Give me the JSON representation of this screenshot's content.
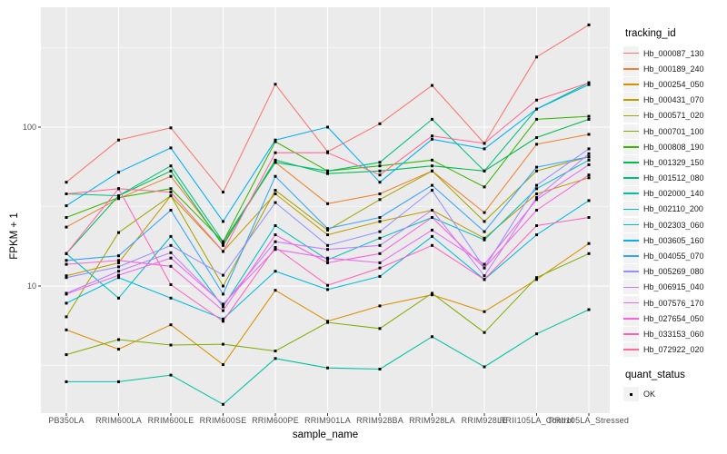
{
  "chart_data": {
    "type": "line",
    "title": "",
    "xlabel": "sample_name",
    "ylabel": "FPKM + 1",
    "y_scale": "log10",
    "y_major_ticks": [
      10,
      100
    ],
    "y_minor_gridlines": [
      3.162,
      31.62,
      316.23
    ],
    "ylim": [
      1.55,
      560
    ],
    "grid": true,
    "panel_background": "#EBEBEB",
    "gridline_color": "#FFFFFF",
    "point_marker": "black-square",
    "point_color": "#000000",
    "legend": {
      "title": "tracking_id",
      "position": "right"
    },
    "quant_legend": {
      "title": "quant_status",
      "items": [
        {
          "label": "OK",
          "marker": "black-square"
        }
      ]
    },
    "categories": [
      "PB350LA",
      "RRIM600LA",
      "RRIM600LE",
      "RRIM600SE",
      "RRIM600PE",
      "RRIM901LA",
      "RRIM928BA",
      "RRIM928LA",
      "RRIM928LE",
      "RRII105LA_Control",
      "RRII105LA_Stressed"
    ],
    "series": [
      {
        "name": "Hb_000087_130",
        "color": "#F8766D",
        "values": [
          45,
          83,
          99,
          39,
          186,
          70,
          105,
          183,
          79,
          276,
          440
        ]
      },
      {
        "name": "Hb_000189_240",
        "color": "#EA8331",
        "values": [
          23.5,
          35.5,
          49,
          18.5,
          60,
          33,
          38,
          53,
          29,
          78,
          90
        ]
      },
      {
        "name": "Hb_000254_050",
        "color": "#D89000",
        "values": [
          5.3,
          4.0,
          5.7,
          3.2,
          9.4,
          6.0,
          7.5,
          8.8,
          6.9,
          11,
          18.5
        ]
      },
      {
        "name": "Hb_000431_070",
        "color": "#C09B00",
        "values": [
          11.6,
          14,
          37,
          16.5,
          38,
          21,
          25.5,
          30,
          20,
          38,
          48
        ]
      },
      {
        "name": "Hb_000571_020",
        "color": "#A3A500",
        "values": [
          6.4,
          21.7,
          37,
          10,
          40,
          22.5,
          35,
          53,
          25.5,
          53,
          65
        ]
      },
      {
        "name": "Hb_000701_100",
        "color": "#7CAE00",
        "values": [
          3.7,
          4.6,
          4.25,
          4.3,
          3.9,
          5.9,
          5.4,
          9.0,
          5.1,
          11.3,
          16
        ]
      },
      {
        "name": "Hb_000808_190",
        "color": "#39B600",
        "values": [
          27,
          36,
          41,
          19,
          81,
          53,
          57,
          62,
          42,
          112,
          117
        ]
      },
      {
        "name": "Hb_001329_150",
        "color": "#00BB4E",
        "values": [
          16,
          37,
          53,
          18,
          62,
          51,
          53,
          57,
          53,
          86,
          112
        ]
      },
      {
        "name": "Hb_001512_080",
        "color": "#00BF7D",
        "values": [
          38,
          37,
          57,
          19,
          60,
          53,
          60,
          112,
          53,
          130,
          190
        ]
      },
      {
        "name": "Hb_002000_140",
        "color": "#00C1A3",
        "values": [
          2.5,
          2.5,
          2.75,
          1.8,
          3.5,
          3.05,
          3.0,
          4.8,
          3.1,
          5.0,
          7.1
        ]
      },
      {
        "name": "Hb_002110_200",
        "color": "#00BFC4",
        "values": [
          16,
          8.4,
          20.5,
          7.4,
          24,
          14.6,
          20,
          27,
          19.5,
          41,
          62
        ]
      },
      {
        "name": "Hb_002303_060",
        "color": "#00BAE0",
        "values": [
          7.8,
          11.3,
          8.4,
          6.2,
          12.4,
          9.5,
          11.5,
          20.5,
          11,
          21,
          34.5
        ]
      },
      {
        "name": "Hb_003605_160",
        "color": "#00B0F6",
        "values": [
          32,
          52,
          74,
          25.5,
          83,
          100,
          45,
          84,
          73,
          130,
          185
        ]
      },
      {
        "name": "Hb_004055_070",
        "color": "#35A2FF",
        "values": [
          14.5,
          15.5,
          30,
          8.9,
          49,
          23,
          27,
          43,
          22,
          56,
          65
        ]
      },
      {
        "name": "Hb_005269_080",
        "color": "#9590FF",
        "values": [
          11.3,
          13.2,
          18,
          11.7,
          33.5,
          18,
          22,
          40,
          13,
          43,
          73
        ]
      },
      {
        "name": "Hb_006915_040",
        "color": "#C77CFF",
        "values": [
          9,
          12.4,
          16.2,
          7.6,
          19,
          17,
          18,
          30,
          11.6,
          36,
          68
        ]
      },
      {
        "name": "Hb_007576_170",
        "color": "#E76BF3",
        "values": [
          8.9,
          11.7,
          15,
          7.7,
          17,
          15,
          14,
          22.5,
          13.7,
          35,
          58
        ]
      },
      {
        "name": "Hb_027654_050",
        "color": "#FA62DB",
        "values": [
          13.7,
          14.5,
          13.3,
          7.0,
          21,
          14,
          16,
          27,
          13,
          30,
          50
        ]
      },
      {
        "name": "Hb_033153_060",
        "color": "#FF62BC",
        "values": [
          16,
          41,
          10.2,
          6.0,
          17.5,
          10.1,
          13,
          18,
          11,
          24,
          27
        ]
      },
      {
        "name": "Hb_072922_020",
        "color": "#FF6A98",
        "values": [
          38,
          41,
          39,
          16.5,
          69,
          69,
          50,
          88,
          79,
          148,
          190
        ]
      }
    ]
  }
}
